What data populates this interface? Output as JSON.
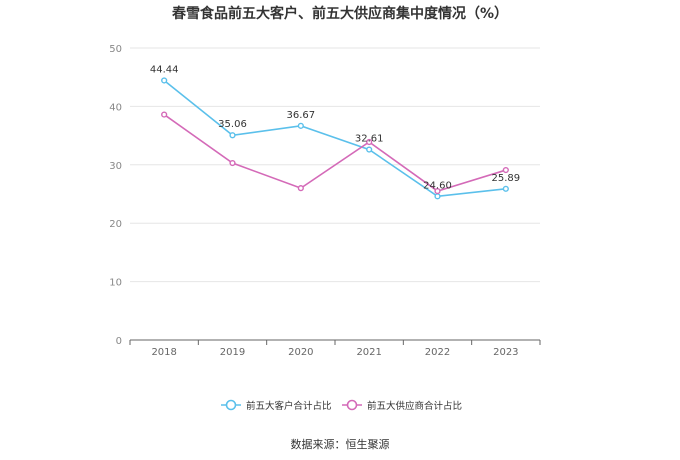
{
  "title": "春雪食品前五大客户、前五大供应商集中度情况（%）",
  "source": "数据来源：恒生聚源",
  "chart_data": {
    "type": "line",
    "title": "春雪食品前五大客户、前五大供应商集中度情况（%）",
    "x": [
      "2018",
      "2019",
      "2020",
      "2021",
      "2022",
      "2023"
    ],
    "ylim": [
      0,
      50
    ],
    "yticks": [
      0,
      10,
      20,
      30,
      40,
      50
    ],
    "grid": true,
    "legend_position": "bottom",
    "series": [
      {
        "name": "前五大客户合计占比",
        "color": "#5bc0eb",
        "values": [
          44.44,
          35.06,
          36.67,
          32.61,
          24.6,
          25.89
        ],
        "labels": [
          "44.44",
          "35.06",
          "36.67",
          "32.61",
          "24.60",
          "25.89"
        ]
      },
      {
        "name": "前五大供应商合计占比",
        "color": "#d46ab8",
        "values": [
          38.6,
          30.3,
          26.0,
          33.9,
          25.5,
          29.1
        ],
        "labels": []
      }
    ]
  }
}
